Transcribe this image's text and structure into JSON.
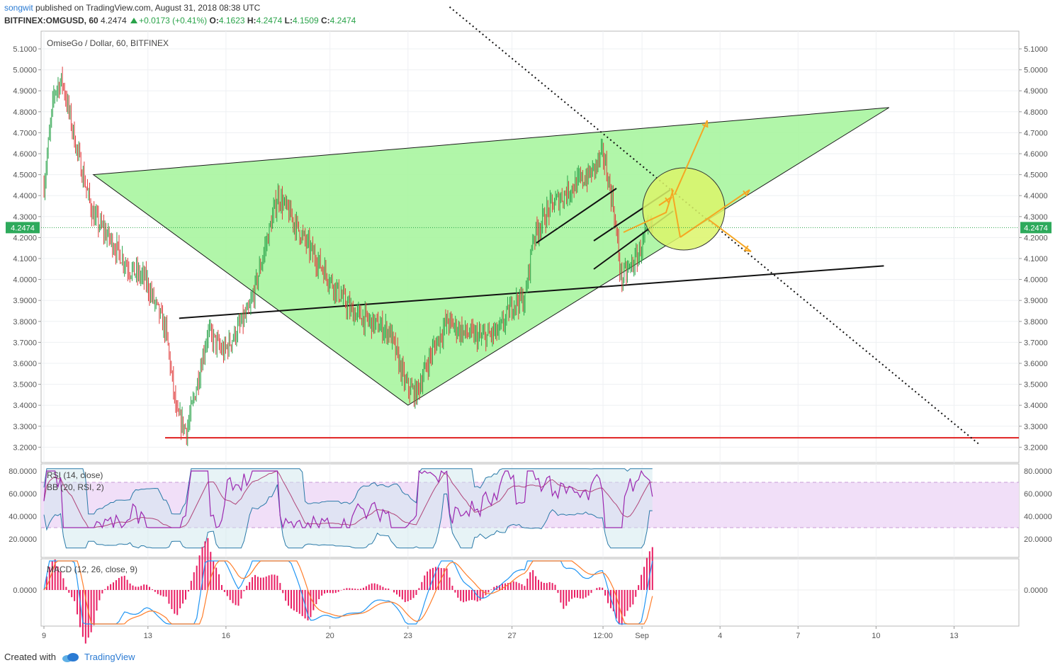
{
  "header": {
    "author": "songwit",
    "published": "published on TradingView.com, August 31, 2018 08:38 UTC",
    "symbol": "BITFINEX:OMGUSD, 60",
    "price": "4.2474",
    "change": "+0.0173 (+0.41%)",
    "o_label": "O:",
    "o": "4.1623",
    "h_label": "H:",
    "h": "4.2474",
    "l_label": "L:",
    "l": "4.1509",
    "c_label": "C:",
    "c": "4.2474"
  },
  "colors": {
    "up": "#2aa34a",
    "down": "#e03c3c",
    "triangle": "#a8f5a0",
    "circle": "#dcf56a",
    "arrow": "#f5a623",
    "support": "#e02020",
    "rsi": "#9c27b0",
    "bb": "#2a7aa8",
    "macd": "#2196f3",
    "signal": "#ff7d2a",
    "hist": "#e91e63",
    "accent": "#2b7bd3"
  },
  "chart_data": [
    {
      "type": "candlestick",
      "title": "OmiseGo / Dollar, 60, BITFINEX",
      "ylim": [
        3.15,
        5.15
      ],
      "y_ticks": [
        "5.1000",
        "5.0000",
        "4.9000",
        "4.8000",
        "4.7000",
        "4.6000",
        "4.5000",
        "4.4000",
        "4.3000",
        "4.2000",
        "4.1000",
        "4.0000",
        "3.9000",
        "3.8000",
        "3.7000",
        "3.6000",
        "3.5000",
        "3.4000",
        "3.3000",
        "3.2000"
      ],
      "last_price": "4.2474",
      "x_ticks": [
        "9",
        "13",
        "16",
        "20",
        "23",
        "27",
        "12:00",
        "Sep",
        "4",
        "7",
        "10",
        "13"
      ],
      "x_tick_days": [
        9,
        13,
        16,
        20,
        23,
        27,
        30.5,
        32,
        35,
        38,
        41,
        44
      ],
      "path_keypoints": [
        [
          9.0,
          4.45
        ],
        [
          9.4,
          4.9
        ],
        [
          9.7,
          4.95
        ],
        [
          10.3,
          4.6
        ],
        [
          10.9,
          4.3
        ],
        [
          11.5,
          4.2
        ],
        [
          12.3,
          4.05
        ],
        [
          12.9,
          4.0
        ],
        [
          13.7,
          3.75
        ],
        [
          14.1,
          3.35
        ],
        [
          14.5,
          3.28
        ],
        [
          14.8,
          3.45
        ],
        [
          15.3,
          3.75
        ],
        [
          15.9,
          3.65
        ],
        [
          16.4,
          3.75
        ],
        [
          16.9,
          3.85
        ],
        [
          17.5,
          4.15
        ],
        [
          18.0,
          4.4
        ],
        [
          18.5,
          4.3
        ],
        [
          19.2,
          4.15
        ],
        [
          20.0,
          4.0
        ],
        [
          20.8,
          3.85
        ],
        [
          21.5,
          3.8
        ],
        [
          22.3,
          3.75
        ],
        [
          22.9,
          3.5
        ],
        [
          23.3,
          3.45
        ],
        [
          23.9,
          3.65
        ],
        [
          24.5,
          3.8
        ],
        [
          25.1,
          3.75
        ],
        [
          25.8,
          3.72
        ],
        [
          26.5,
          3.75
        ],
        [
          27.1,
          3.9
        ],
        [
          27.5,
          3.9
        ],
        [
          27.8,
          4.2
        ],
        [
          28.5,
          4.35
        ],
        [
          29.4,
          4.45
        ],
        [
          30.0,
          4.5
        ],
        [
          30.5,
          4.6
        ],
        [
          30.9,
          4.35
        ],
        [
          31.2,
          4.0
        ],
        [
          31.5,
          4.05
        ],
        [
          31.8,
          4.1
        ],
        [
          32.1,
          4.2
        ],
        [
          32.4,
          4.25
        ]
      ],
      "annotations": {
        "support_level": 3.245,
        "triangle": [
          [
            10.9,
            4.5
          ],
          [
            41.5,
            4.82
          ],
          [
            23.0,
            3.4
          ]
        ],
        "trendline": [
          [
            14.2,
            3.815
          ],
          [
            41.3,
            4.065
          ]
        ],
        "dotted_line": [
          [
            24.6,
            5.3
          ],
          [
            45.0,
            3.21
          ]
        ]
      }
    },
    {
      "type": "line",
      "title": "RSI (14, close)",
      "subtitle": "BB (20, RSI, 2)",
      "ylim": [
        8,
        84
      ],
      "y_ticks": [
        "80.0000",
        "60.0000",
        "40.0000",
        "20.0000"
      ],
      "band": [
        30,
        70
      ]
    },
    {
      "type": "line",
      "title": "MACD (12, 26, close, 9)",
      "y_ticks": [
        "0.0000"
      ]
    }
  ],
  "footer": {
    "created": "Created with",
    "brand": "TradingView"
  }
}
